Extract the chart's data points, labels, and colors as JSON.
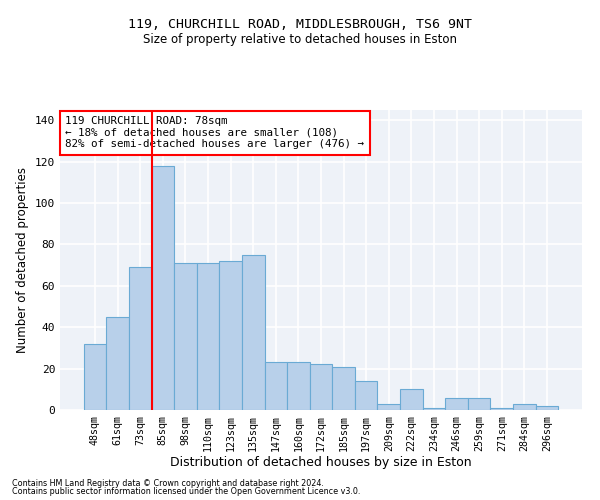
{
  "title1": "119, CHURCHILL ROAD, MIDDLESBROUGH, TS6 9NT",
  "title2": "Size of property relative to detached houses in Eston",
  "xlabel": "Distribution of detached houses by size in Eston",
  "ylabel": "Number of detached properties",
  "categories": [
    "48sqm",
    "61sqm",
    "73sqm",
    "85sqm",
    "98sqm",
    "110sqm",
    "123sqm",
    "135sqm",
    "147sqm",
    "160sqm",
    "172sqm",
    "185sqm",
    "197sqm",
    "209sqm",
    "222sqm",
    "234sqm",
    "246sqm",
    "259sqm",
    "271sqm",
    "284sqm",
    "296sqm"
  ],
  "values": [
    32,
    45,
    69,
    118,
    71,
    71,
    72,
    75,
    23,
    23,
    22,
    21,
    14,
    3,
    10,
    1,
    6,
    6,
    1,
    3,
    2
  ],
  "bar_color": "#b8d0ea",
  "bar_edge_color": "#6aaad4",
  "red_line_x": 2.5,
  "annotation_text": "119 CHURCHILL ROAD: 78sqm\n← 18% of detached houses are smaller (108)\n82% of semi-detached houses are larger (476) →",
  "annotation_box_color": "white",
  "annotation_box_edge": "red",
  "ylim": [
    0,
    145
  ],
  "yticks": [
    0,
    20,
    40,
    60,
    80,
    100,
    120,
    140
  ],
  "footer1": "Contains HM Land Registry data © Crown copyright and database right 2024.",
  "footer2": "Contains public sector information licensed under the Open Government Licence v3.0.",
  "background_color": "#eef2f8",
  "grid_color": "white",
  "fig_bg": "white"
}
